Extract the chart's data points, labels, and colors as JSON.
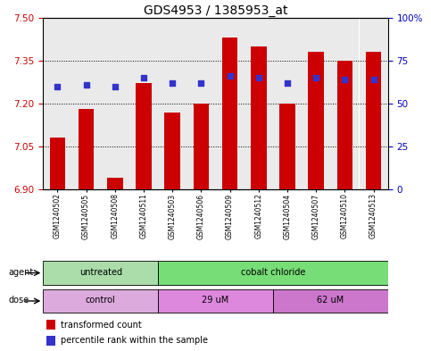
{
  "title": "GDS4953 / 1385953_at",
  "samples": [
    "GSM1240502",
    "GSM1240505",
    "GSM1240508",
    "GSM1240511",
    "GSM1240503",
    "GSM1240506",
    "GSM1240509",
    "GSM1240512",
    "GSM1240504",
    "GSM1240507",
    "GSM1240510",
    "GSM1240513"
  ],
  "bar_values": [
    7.08,
    7.18,
    6.94,
    7.27,
    7.17,
    7.2,
    7.43,
    7.4,
    7.2,
    7.38,
    7.35,
    7.38
  ],
  "percentile_values": [
    60,
    61,
    60,
    65,
    62,
    62,
    66,
    65,
    62,
    65,
    64,
    64
  ],
  "ymin": 6.9,
  "ymax": 7.5,
  "yticks": [
    6.9,
    7.05,
    7.2,
    7.35,
    7.5
  ],
  "right_yticks": [
    0,
    25,
    50,
    75,
    100
  ],
  "right_ylabels": [
    "0",
    "25",
    "50",
    "75",
    "100%"
  ],
  "bar_color": "#cc0000",
  "dot_color": "#3333cc",
  "bar_bottom": 6.9,
  "agent_groups": [
    {
      "label": "untreated",
      "start": 0,
      "end": 4,
      "color": "#aaddaa"
    },
    {
      "label": "cobalt chloride",
      "start": 4,
      "end": 12,
      "color": "#77dd77"
    }
  ],
  "dose_groups": [
    {
      "label": "control",
      "start": 0,
      "end": 4,
      "color": "#ddaadd"
    },
    {
      "label": "29 uM",
      "start": 4,
      "end": 8,
      "color": "#dd88dd"
    },
    {
      "label": "62 uM",
      "start": 8,
      "end": 12,
      "color": "#cc77cc"
    }
  ],
  "legend_items": [
    {
      "color": "#cc0000",
      "label": "transformed count"
    },
    {
      "color": "#3333cc",
      "label": "percentile rank within the sample"
    }
  ],
  "left_tick_color": "#cc0000",
  "right_tick_color": "#0000bb",
  "title_fontsize": 10,
  "tick_fontsize": 7.5,
  "bar_width": 0.55,
  "background_color": "#ffffff",
  "sample_bg_color": "#cccccc",
  "sample_bg_alpha": 0.4
}
